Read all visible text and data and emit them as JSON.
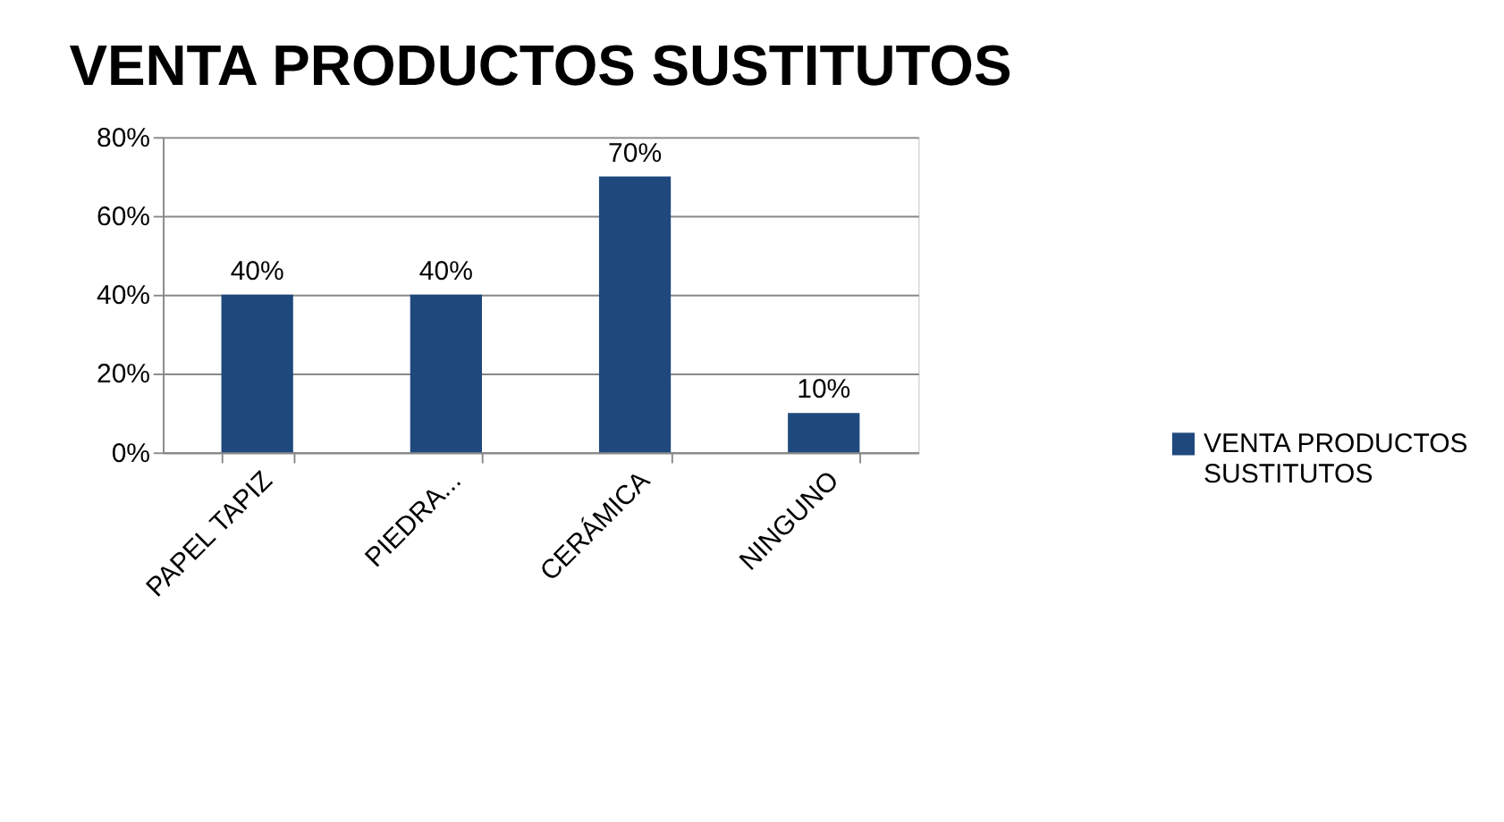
{
  "chart_data": {
    "type": "bar",
    "title": "VENTA PRODUCTOS SUSTITUTOS",
    "categories": [
      "PAPEL TAPIZ",
      "PIEDRA...",
      "CERÁMICA",
      "NINGUNO"
    ],
    "series": [
      {
        "name": "VENTA PRODUCTOS SUSTITUTOS",
        "color": "#1f497d",
        "values": [
          40,
          40,
          70,
          10
        ]
      }
    ],
    "value_labels": [
      "40%",
      "40%",
      "70%",
      "10%"
    ],
    "ylim": [
      0,
      80
    ],
    "yticks": [
      {
        "value": 0,
        "label": "0%"
      },
      {
        "value": 20,
        "label": "20%"
      },
      {
        "value": 40,
        "label": "40%"
      },
      {
        "value": 60,
        "label": "60%"
      },
      {
        "value": 80,
        "label": "80%"
      }
    ],
    "grid": "y",
    "legend": "right"
  }
}
